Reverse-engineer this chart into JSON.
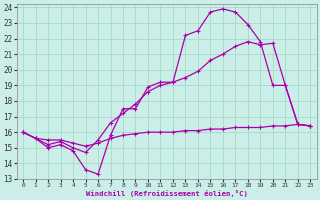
{
  "xlabel": "Windchill (Refroidissement éolien,°C)",
  "bg_color": "#cceee8",
  "grid_color": "#aaddcc",
  "line_color": "#aa00aa",
  "xlim": [
    -0.5,
    23.5
  ],
  "ylim": [
    13,
    24.2
  ],
  "xticks": [
    0,
    1,
    2,
    3,
    4,
    5,
    6,
    7,
    8,
    9,
    10,
    11,
    12,
    13,
    14,
    15,
    16,
    17,
    18,
    19,
    20,
    21,
    22,
    23
  ],
  "yticks": [
    13,
    14,
    15,
    16,
    17,
    18,
    19,
    20,
    21,
    22,
    23,
    24
  ],
  "series1_x": [
    0,
    1,
    2,
    3,
    4,
    5,
    6,
    7,
    8,
    9,
    10,
    11,
    12,
    13,
    14,
    15,
    16,
    17,
    18,
    19,
    20,
    21,
    22,
    23
  ],
  "series1_y": [
    16.0,
    15.6,
    15.0,
    15.2,
    14.8,
    13.6,
    13.3,
    15.8,
    17.5,
    17.5,
    18.9,
    19.2,
    19.2,
    22.2,
    22.5,
    23.7,
    23.9,
    23.7,
    22.9,
    21.8,
    19.0,
    19.0,
    16.5,
    16.4
  ],
  "series2_x": [
    0,
    1,
    2,
    3,
    4,
    5,
    6,
    7,
    8,
    9,
    10,
    11,
    12,
    13,
    14,
    15,
    16,
    17,
    18,
    19,
    20,
    21,
    22,
    23
  ],
  "series2_y": [
    16.0,
    15.6,
    15.2,
    15.4,
    15.0,
    14.7,
    15.5,
    16.6,
    17.2,
    17.8,
    18.6,
    19.0,
    19.2,
    19.5,
    19.9,
    20.6,
    21.0,
    21.5,
    21.8,
    21.6,
    21.7,
    19.0,
    16.5,
    16.4
  ],
  "series3_x": [
    0,
    1,
    2,
    3,
    4,
    5,
    6,
    7,
    8,
    9,
    10,
    11,
    12,
    13,
    14,
    15,
    16,
    17,
    18,
    19,
    20,
    21,
    22,
    23
  ],
  "series3_y": [
    16.0,
    15.6,
    15.5,
    15.5,
    15.3,
    15.1,
    15.3,
    15.6,
    15.8,
    15.9,
    16.0,
    16.0,
    16.0,
    16.1,
    16.1,
    16.2,
    16.2,
    16.3,
    16.3,
    16.3,
    16.4,
    16.4,
    16.5,
    16.4
  ]
}
